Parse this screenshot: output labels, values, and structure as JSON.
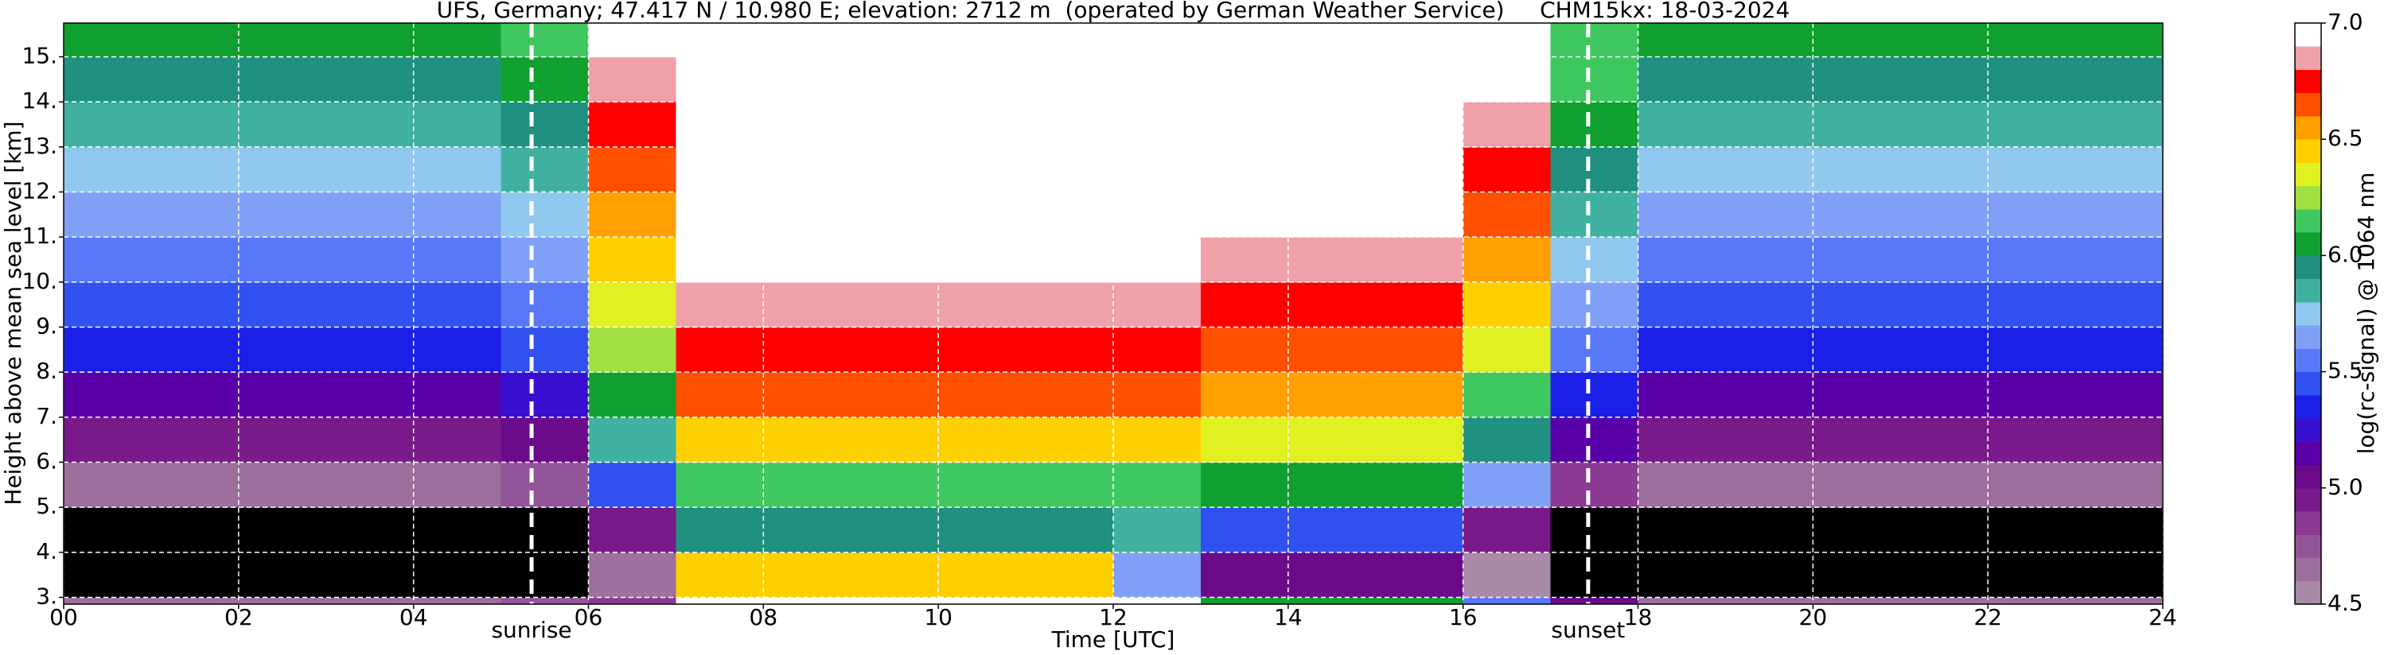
{
  "chart_data": {
    "type": "heatmap",
    "title": "UFS, Germany; 47.417 N / 10.980 E; elevation: 2712 m  (operated by German Weather Service)     CHM15kx: 18-03-2024",
    "x_label": "Time [UTC]",
    "y_label": "Height above mean sea level [km]",
    "x_bins": [
      0,
      1,
      2,
      3,
      4,
      5,
      6,
      7,
      8,
      9,
      10,
      11,
      12,
      13,
      14,
      15,
      16,
      17,
      18,
      19,
      20,
      21,
      22,
      23,
      24
    ],
    "y_bins": [
      2.85,
      3,
      4,
      5,
      6,
      7,
      8,
      9,
      10,
      11,
      12,
      13,
      14,
      15,
      15.75
    ],
    "values": [
      [
        4.6,
        4.6,
        4.6,
        4.6,
        4.6,
        4.7,
        4.8,
        6.9,
        6.9,
        6.9,
        6.9,
        6.9,
        6.9,
        6.0,
        6.0,
        6.0,
        5.5,
        5.0,
        4.6,
        4.6,
        4.6,
        4.6,
        4.6,
        4.6
      ],
      [
        4.2,
        4.2,
        4.2,
        4.2,
        4.2,
        4.3,
        4.6,
        6.4,
        6.4,
        6.4,
        6.4,
        6.4,
        5.6,
        5.0,
        5.0,
        5.0,
        4.5,
        4.2,
        4.2,
        4.2,
        4.2,
        4.2,
        4.2,
        4.2
      ],
      [
        4.3,
        4.3,
        4.3,
        4.3,
        4.3,
        4.4,
        4.9,
        5.9,
        5.9,
        5.9,
        5.9,
        5.9,
        5.8,
        5.4,
        5.4,
        5.4,
        4.9,
        4.4,
        4.3,
        4.3,
        4.3,
        4.3,
        4.3,
        4.3
      ],
      [
        4.6,
        4.6,
        4.6,
        4.6,
        4.6,
        4.7,
        5.4,
        6.1,
        6.1,
        6.1,
        6.1,
        6.1,
        6.1,
        6.0,
        6.0,
        6.0,
        5.6,
        4.8,
        4.6,
        4.6,
        4.6,
        4.6,
        4.6,
        4.6
      ],
      [
        4.9,
        4.9,
        4.9,
        4.9,
        4.9,
        5.0,
        5.8,
        6.4,
        6.4,
        6.4,
        6.4,
        6.4,
        6.4,
        6.3,
        6.3,
        6.3,
        5.9,
        5.1,
        4.9,
        4.9,
        4.9,
        4.9,
        4.9,
        4.9
      ],
      [
        5.1,
        5.1,
        5.1,
        5.1,
        5.1,
        5.2,
        6.0,
        6.6,
        6.6,
        6.6,
        6.6,
        6.6,
        6.6,
        6.5,
        6.5,
        6.5,
        6.1,
        5.3,
        5.1,
        5.1,
        5.1,
        5.1,
        5.1,
        5.1
      ],
      [
        5.3,
        5.3,
        5.3,
        5.3,
        5.3,
        5.4,
        6.2,
        6.7,
        6.7,
        6.7,
        6.7,
        6.7,
        6.7,
        6.6,
        6.6,
        6.6,
        6.3,
        5.5,
        5.3,
        5.3,
        5.3,
        5.3,
        5.3,
        5.3
      ],
      [
        5.4,
        5.4,
        5.4,
        5.4,
        5.4,
        5.5,
        6.3,
        6.8,
        6.8,
        6.8,
        6.8,
        6.8,
        6.8,
        6.7,
        6.7,
        6.7,
        6.4,
        5.6,
        5.4,
        5.4,
        5.4,
        5.4,
        5.4,
        5.4
      ],
      [
        5.5,
        5.5,
        5.5,
        5.5,
        5.5,
        5.6,
        6.4,
        6.9,
        6.9,
        6.9,
        6.9,
        6.9,
        6.9,
        6.8,
        6.8,
        6.8,
        6.5,
        5.7,
        5.5,
        5.5,
        5.5,
        5.5,
        5.5,
        5.5
      ],
      [
        5.6,
        5.6,
        5.6,
        5.6,
        5.6,
        5.7,
        6.5,
        6.9,
        6.9,
        6.9,
        6.9,
        6.9,
        6.9,
        6.9,
        6.9,
        6.9,
        6.6,
        5.8,
        5.6,
        5.6,
        5.6,
        5.6,
        5.6,
        5.6
      ],
      [
        5.7,
        5.7,
        5.7,
        5.7,
        5.7,
        5.8,
        6.6,
        7.0,
        7.0,
        7.0,
        7.0,
        7.0,
        7.0,
        6.9,
        6.9,
        6.9,
        6.7,
        5.9,
        5.7,
        5.7,
        5.7,
        5.7,
        5.7,
        5.7
      ],
      [
        5.8,
        5.8,
        5.8,
        5.8,
        5.8,
        5.9,
        6.7,
        7.0,
        7.0,
        7.0,
        7.0,
        7.0,
        7.0,
        7.0,
        7.0,
        7.0,
        6.8,
        6.0,
        5.8,
        5.8,
        5.8,
        5.8,
        5.8,
        5.8
      ],
      [
        5.9,
        5.9,
        5.9,
        5.9,
        5.9,
        6.0,
        6.8,
        7.0,
        7.0,
        7.0,
        7.0,
        7.0,
        7.0,
        7.0,
        7.0,
        7.0,
        6.9,
        6.1,
        5.9,
        5.9,
        5.9,
        5.9,
        5.9,
        5.9
      ],
      [
        6.0,
        6.0,
        6.0,
        6.0,
        6.0,
        6.1,
        6.9,
        7.0,
        7.0,
        7.0,
        7.0,
        7.0,
        7.0,
        7.0,
        7.0,
        7.0,
        6.9,
        6.1,
        6.0,
        6.0,
        6.0,
        6.0,
        6.0,
        6.0
      ]
    ],
    "xlim": [
      0,
      24
    ],
    "xticks": [
      {
        "value": 0,
        "label": "00"
      },
      {
        "value": 2,
        "label": "02"
      },
      {
        "value": 4,
        "label": "04"
      },
      {
        "value": 6,
        "label": "06"
      },
      {
        "value": 8,
        "label": "08"
      },
      {
        "value": 10,
        "label": "10"
      },
      {
        "value": 12,
        "label": "12"
      },
      {
        "value": 14,
        "label": "14"
      },
      {
        "value": 16,
        "label": "16"
      },
      {
        "value": 18,
        "label": "18"
      },
      {
        "value": 20,
        "label": "20"
      },
      {
        "value": 22,
        "label": "22"
      },
      {
        "value": 24,
        "label": "24"
      }
    ],
    "ylim": [
      2.85,
      15.75
    ],
    "yticks": [
      {
        "value": 3,
        "label": "3."
      },
      {
        "value": 4,
        "label": "4."
      },
      {
        "value": 5,
        "label": "5."
      },
      {
        "value": 6,
        "label": "6."
      },
      {
        "value": 7,
        "label": "7."
      },
      {
        "value": 8,
        "label": "8."
      },
      {
        "value": 9,
        "label": "9."
      },
      {
        "value": 10,
        "label": "10."
      },
      {
        "value": 11,
        "label": "11."
      },
      {
        "value": 12,
        "label": "12."
      },
      {
        "value": 13,
        "label": "13."
      },
      {
        "value": 14,
        "label": "14."
      },
      {
        "value": 15,
        "label": "15."
      }
    ],
    "grid": true,
    "grid_color": "#ffffff",
    "annotations": [
      {
        "text": "sunrise",
        "x": 5.35,
        "color": "#ffffff"
      },
      {
        "text": "sunset",
        "x": 17.43,
        "color": "#ffffff"
      }
    ],
    "colorbar": {
      "label": "log(rc-signal) @ 1064 nm",
      "lim": [
        4.5,
        7.0
      ],
      "step": 0.1,
      "under_color": "#000000",
      "ticks": [
        4.5,
        {
          "value": 5,
          "label": "5.0"
        },
        5.5,
        {
          "value": 6,
          "label": "6.0"
        },
        6.5,
        {
          "value": 7,
          "label": "7.0"
        }
      ],
      "colors": [
        "#a88aa8",
        "#9c6f9c",
        "#93559a",
        "#8a3a93",
        "#7a1a8a",
        "#6a0a8a",
        "#5a00a8",
        "#3a10d0",
        "#1a20e8",
        "#3050f0",
        "#5878f8",
        "#80a0f8",
        "#90c8f0",
        "#40b0a0",
        "#209080",
        "#10a030",
        "#40c860",
        "#a0e040",
        "#e0f020",
        "#ffd000",
        "#ffa000",
        "#ff5000",
        "#ff0000",
        "#f0a0a8",
        "#ffffff"
      ]
    }
  }
}
